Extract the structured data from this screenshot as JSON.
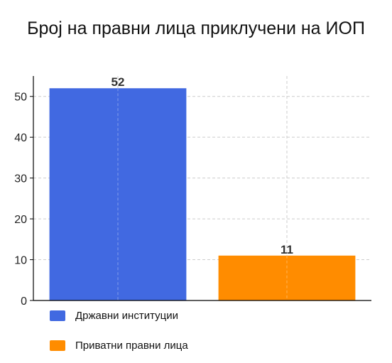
{
  "chart_data": {
    "type": "bar",
    "title": "Број на правни лица приклучени на ИОП",
    "xlabel": "",
    "ylabel": "",
    "ylim": [
      0,
      55
    ],
    "yticks": [
      0,
      10,
      20,
      30,
      40,
      50
    ],
    "grid": true,
    "legend_position": "bottom-left",
    "categories": [
      "Државни институции",
      "Приватни правни лица"
    ],
    "values": [
      52,
      11
    ],
    "colors": [
      "#4169e1",
      "#ff8c00"
    ]
  }
}
